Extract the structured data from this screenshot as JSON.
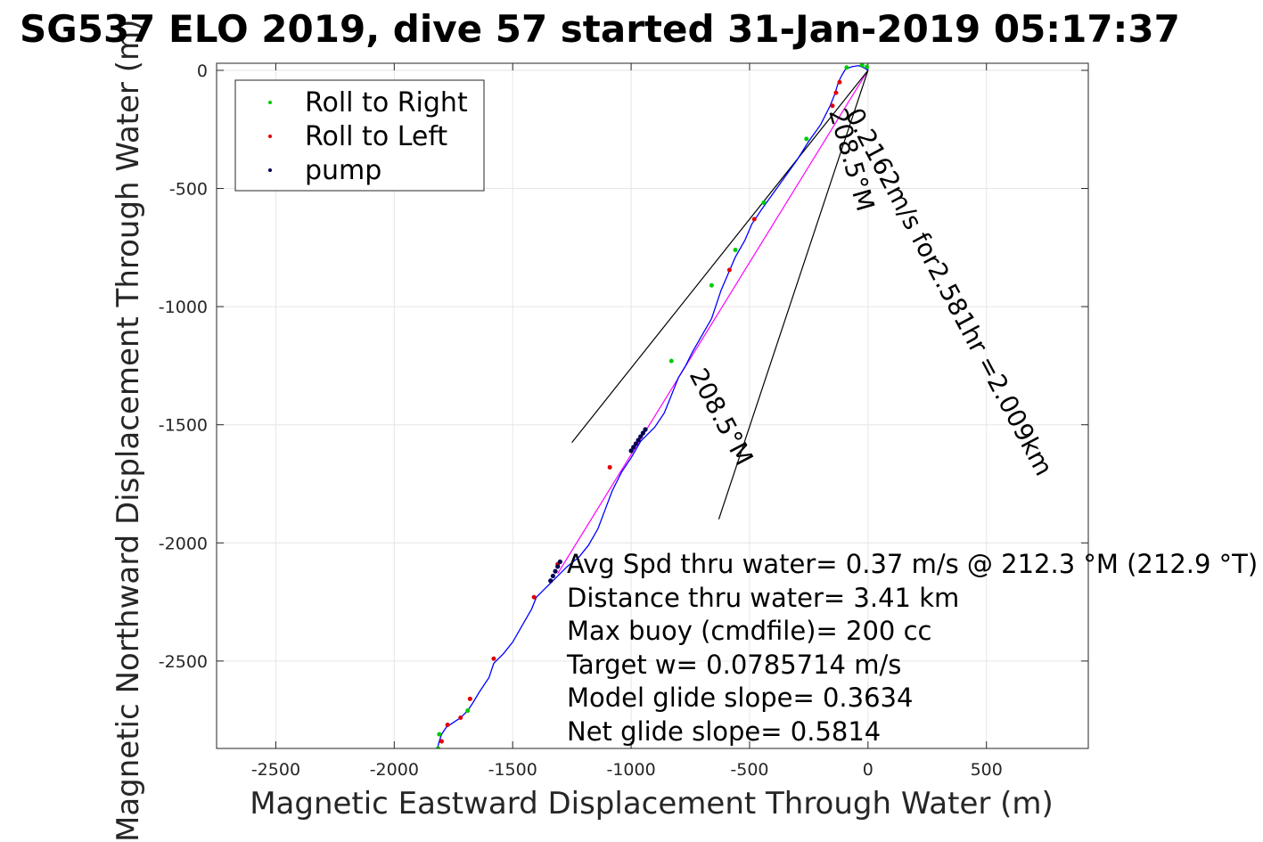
{
  "chart_data": {
    "type": "scatter",
    "title": "SG537 ELO 2019, dive 57 started 31-Jan-2019 05:17:37",
    "xlabel": "Magnetic Eastward Displacement Through Water (m)",
    "ylabel": "Magnetic Northward Displacement Through Water (m)",
    "xlim": [
      -2750,
      930
    ],
    "ylim": [
      -2870,
      30
    ],
    "xticks": [
      -2500,
      -2000,
      -1500,
      -1000,
      -500,
      0,
      500
    ],
    "yticks": [
      0,
      -500,
      -1000,
      -1500,
      -2000,
      -2500
    ],
    "grid": true,
    "legend_position": "top-left",
    "legend": [
      {
        "label": "Roll to Right",
        "color": "#00cc00"
      },
      {
        "label": "Roll to Left",
        "color": "#e00000"
      },
      {
        "label": "pump",
        "color": "#000050"
      }
    ],
    "track": {
      "name": "track",
      "color": "#0000ff",
      "x": [
        0,
        -15,
        -40,
        -70,
        -95,
        -110,
        -125,
        -140,
        -160,
        -200,
        -250,
        -300,
        -350,
        -400,
        -450,
        -490,
        -520,
        -560,
        -590,
        -620,
        -640,
        -660,
        -700,
        -740,
        -770,
        -800,
        -820,
        -840,
        -860,
        -900,
        -960,
        -1000,
        -1040,
        -1080,
        -1110,
        -1140,
        -1180,
        -1220,
        -1270,
        -1310,
        -1340,
        -1370,
        -1400,
        -1420,
        -1460,
        -1500,
        -1540,
        -1580,
        -1600,
        -1640,
        -1670,
        -1690,
        -1720,
        -1750,
        -1780,
        -1800,
        -1810,
        -1815,
        -1815
      ],
      "y": [
        0,
        10,
        20,
        15,
        5,
        -20,
        -50,
        -100,
        -150,
        -230,
        -300,
        -380,
        -450,
        -520,
        -590,
        -650,
        -720,
        -790,
        -860,
        -930,
        -990,
        -1050,
        -1120,
        -1190,
        -1250,
        -1300,
        -1350,
        -1400,
        -1450,
        -1510,
        -1570,
        -1640,
        -1700,
        -1780,
        -1860,
        -1940,
        -2010,
        -2060,
        -2100,
        -2140,
        -2170,
        -2200,
        -2230,
        -2280,
        -2350,
        -2420,
        -2470,
        -2510,
        -2570,
        -2630,
        -2680,
        -2710,
        -2740,
        -2760,
        -2780,
        -2810,
        -2840,
        -2860,
        -2870
      ]
    },
    "roll_right": {
      "x": [
        -5,
        -25,
        -90,
        -260,
        -440,
        -560,
        -660,
        -830,
        -1690,
        -1810,
        -1815
      ],
      "y": [
        15,
        22,
        12,
        -290,
        -560,
        -760,
        -910,
        -1230,
        -2710,
        -2810,
        -2870
      ]
    },
    "roll_left": {
      "x": [
        -120,
        -135,
        -150,
        -480,
        -585,
        -1090,
        -1310,
        -1410,
        -1580,
        -1680,
        -1720,
        -1775,
        -1800
      ],
      "y": [
        -50,
        -95,
        -150,
        -630,
        -845,
        -1680,
        -2090,
        -2230,
        -2490,
        -2660,
        -2740,
        -2770,
        -2840
      ]
    },
    "pump": {
      "x": [
        -1000,
        -990,
        -980,
        -970,
        -960,
        -950,
        -940,
        -1340,
        -1330,
        -1320,
        -1310,
        -1300
      ],
      "y": [
        -1610,
        -1595,
        -1580,
        -1565,
        -1550,
        -1535,
        -1520,
        -2160,
        -2140,
        -2120,
        -2100,
        -2080
      ]
    },
    "lines": [
      {
        "name": "bearing-line",
        "color": "#ff00ff",
        "x": [
          0,
          -1310
        ],
        "y": [
          0,
          -2130
        ]
      },
      {
        "name": "wedge-left",
        "color": "#000000",
        "x": [
          0,
          -1250
        ],
        "y": [
          0,
          -1575
        ]
      },
      {
        "name": "wedge-right",
        "color": "#000000",
        "x": [
          0,
          -630
        ],
        "y": [
          0,
          -1900
        ]
      }
    ],
    "rotated_annotations": [
      "208.5°M",
      "0.2162m/s for2.581hr =2.009km",
      "208.5°M"
    ],
    "annotations": [
      "Avg Spd thru water=  0.37 m/s @ 212.3 °M (212.9 °T)",
      "Distance thru water=  3.41 km",
      "Max buoy (cmdfile)= 200 cc",
      "Target w= 0.0785714 m/s",
      "Model glide slope= 0.3634",
      "Net glide slope= 0.5814"
    ]
  }
}
